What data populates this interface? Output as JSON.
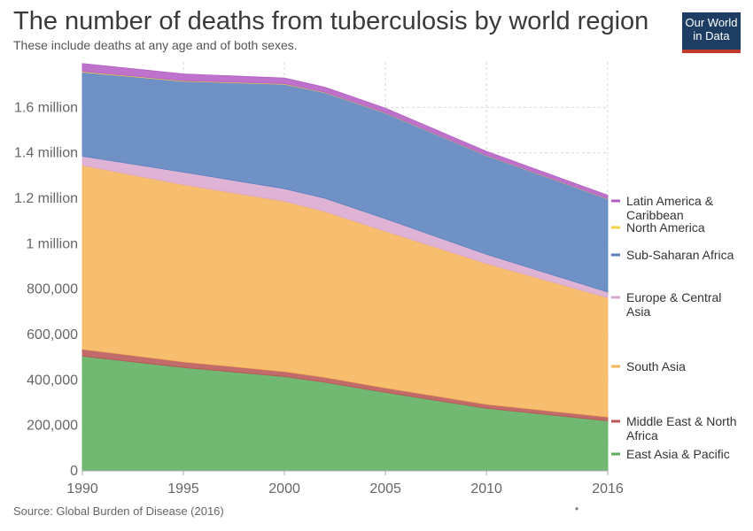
{
  "header": {
    "title": "The number of deaths from tuberculosis by world region",
    "subtitle": "These include deaths at any age and of both sexes.",
    "logo_line1": "Our World",
    "logo_line2": "in Data"
  },
  "footer": {
    "source": "Source: Global Burden of Disease (2016)",
    "dot": "•"
  },
  "chart_data": {
    "type": "area",
    "title": "The number of deaths from tuberculosis by world region",
    "subtitle": "These include deaths at any age and of both sexes.",
    "xlabel": "",
    "ylabel": "",
    "xlim": [
      1990,
      2016
    ],
    "ylim": [
      0,
      1800000
    ],
    "x_ticks": [
      1990,
      1995,
      2000,
      2005,
      2010,
      2016
    ],
    "y_ticks": [
      0,
      200000,
      400000,
      600000,
      800000,
      1000000,
      1200000,
      1400000,
      1600000
    ],
    "y_tick_labels": [
      "0",
      "200,000",
      "400,000",
      "600,000",
      "800,000",
      "1 million",
      "1.2 million",
      "1.4 million",
      "1.6 million"
    ],
    "grid": true,
    "stacked": true,
    "x": [
      1990,
      1995,
      2000,
      2002,
      2005,
      2010,
      2016
    ],
    "series": [
      {
        "name": "East Asia & Pacific",
        "color": "#5daf5e",
        "values": [
          505000,
          455000,
          415000,
          390000,
          345000,
          275000,
          220000
        ]
      },
      {
        "name": "Middle East & North Africa",
        "color": "#b95656",
        "values": [
          30000,
          25000,
          22000,
          22000,
          20000,
          18000,
          17000
        ]
      },
      {
        "name": "South Asia",
        "color": "#f6b55b",
        "values": [
          810000,
          780000,
          750000,
          730000,
          690000,
          620000,
          525000
        ]
      },
      {
        "name": "Europe & Central Asia",
        "color": "#d9a8cf",
        "values": [
          40000,
          55000,
          55000,
          58000,
          55000,
          40000,
          25000
        ]
      },
      {
        "name": "Sub-Saharan Africa",
        "color": "#5b82be",
        "values": [
          370000,
          400000,
          460000,
          465000,
          465000,
          435000,
          410000
        ]
      },
      {
        "name": "North America",
        "color": "#f2d24a",
        "values": [
          3000,
          2500,
          2000,
          2000,
          1500,
          1500,
          1500
        ]
      },
      {
        "name": "Latin America & Caribbean",
        "color": "#b55fc4",
        "values": [
          35000,
          30000,
          25000,
          22000,
          20000,
          17000,
          15000
        ]
      }
    ],
    "legend_order": [
      "Latin America & Caribbean",
      "North America",
      "Sub-Saharan Africa",
      "Europe & Central Asia",
      "South Asia",
      "Middle East & North Africa",
      "East Asia & Pacific"
    ],
    "legend_placement": "right"
  }
}
